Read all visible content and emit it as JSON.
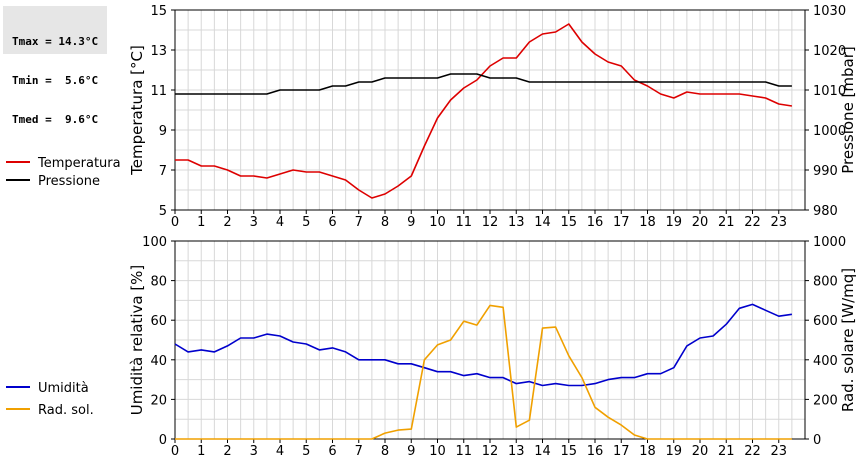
{
  "stats": {
    "tmax": "Tmax = 14.3°C",
    "tmin": "Tmin =  5.6°C",
    "tmed": "Tmed =  9.6°C"
  },
  "chart_data": [
    {
      "type": "line",
      "title": "",
      "xlabel": "",
      "ylabel": "Temperatura [°C]",
      "ylabel_right": "Pressione [mbar]",
      "xlim": [
        0,
        24
      ],
      "ylim": [
        5,
        15
      ],
      "ylim_right": [
        980,
        1030
      ],
      "xticks": [
        0,
        1,
        2,
        3,
        4,
        5,
        6,
        7,
        8,
        9,
        10,
        11,
        12,
        13,
        14,
        15,
        16,
        17,
        18,
        19,
        20,
        21,
        22,
        23
      ],
      "yticks": [
        5,
        7,
        9,
        11,
        13,
        15
      ],
      "yticks_right": [
        980,
        990,
        1000,
        1010,
        1020,
        1030
      ],
      "grid": true,
      "legend": "left",
      "series": [
        {
          "name": "Temperatura",
          "axis": "left",
          "color": "#dd0000",
          "x": [
            0,
            0.5,
            1,
            1.5,
            2,
            2.5,
            3,
            3.5,
            4,
            4.5,
            5,
            5.5,
            6,
            6.5,
            7,
            7.5,
            8,
            8.5,
            9,
            9.5,
            10,
            10.5,
            11,
            11.5,
            12,
            12.5,
            13,
            13.5,
            14,
            14.5,
            15,
            15.5,
            16,
            16.5,
            17,
            17.5,
            18,
            18.5,
            19,
            19.5,
            20,
            20.5,
            21,
            21.5,
            22,
            22.5,
            23,
            23.5
          ],
          "y": [
            7.5,
            7.5,
            7.2,
            7.2,
            7.0,
            6.7,
            6.7,
            6.6,
            6.8,
            7.0,
            6.9,
            6.9,
            6.7,
            6.5,
            6.0,
            5.6,
            5.8,
            6.2,
            6.7,
            8.2,
            9.6,
            10.5,
            11.1,
            11.5,
            12.2,
            12.6,
            12.6,
            13.4,
            13.8,
            13.9,
            14.3,
            13.4,
            12.8,
            12.4,
            12.2,
            11.5,
            11.2,
            10.8,
            10.6,
            10.9,
            10.8,
            10.8,
            10.8,
            10.8,
            10.7,
            10.6,
            10.3,
            10.2
          ]
        },
        {
          "name": "Pressione",
          "axis": "right",
          "color": "#000000",
          "x": [
            0,
            0.5,
            1,
            1.5,
            2,
            2.5,
            3,
            3.5,
            4,
            4.5,
            5,
            5.5,
            6,
            6.5,
            7,
            7.5,
            8,
            8.5,
            9,
            9.5,
            10,
            10.5,
            11,
            11.5,
            12,
            12.5,
            13,
            13.5,
            14,
            14.5,
            15,
            15.5,
            16,
            16.5,
            17,
            17.5,
            18,
            18.5,
            19,
            19.5,
            20,
            20.5,
            21,
            21.5,
            22,
            22.5,
            23,
            23.5
          ],
          "y": [
            1009,
            1009,
            1009,
            1009,
            1009,
            1009,
            1009,
            1009,
            1010,
            1010,
            1010,
            1010,
            1011,
            1011,
            1012,
            1012,
            1013,
            1013,
            1013,
            1013,
            1013,
            1014,
            1014,
            1014,
            1013,
            1013,
            1013,
            1012,
            1012,
            1012,
            1012,
            1012,
            1012,
            1012,
            1012,
            1012,
            1012,
            1012,
            1012,
            1012,
            1012,
            1012,
            1012,
            1012,
            1012,
            1012,
            1011,
            1011
          ]
        }
      ]
    },
    {
      "type": "line",
      "title": "",
      "xlabel": "",
      "ylabel": "Umidità relativa [%]",
      "ylabel_right": "Rad. solare [W/mq]",
      "xlim": [
        0,
        24
      ],
      "ylim": [
        0,
        100
      ],
      "ylim_right": [
        0,
        1000
      ],
      "xticks": [
        0,
        1,
        2,
        3,
        4,
        5,
        6,
        7,
        8,
        9,
        10,
        11,
        12,
        13,
        14,
        15,
        16,
        17,
        18,
        19,
        20,
        21,
        22,
        23
      ],
      "yticks": [
        0,
        20,
        40,
        60,
        80,
        100
      ],
      "yticks_right": [
        0,
        200,
        400,
        600,
        800,
        1000
      ],
      "grid": true,
      "legend": "left",
      "series": [
        {
          "name": "Umidità",
          "axis": "left",
          "color": "#0000cc",
          "x": [
            0,
            0.5,
            1,
            1.5,
            2,
            2.5,
            3,
            3.5,
            4,
            4.5,
            5,
            5.5,
            6,
            6.5,
            7,
            7.5,
            8,
            8.5,
            9,
            9.5,
            10,
            10.5,
            11,
            11.5,
            12,
            12.5,
            13,
            13.5,
            14,
            14.5,
            15,
            15.5,
            16,
            16.5,
            17,
            17.5,
            18,
            18.5,
            19,
            19.5,
            20,
            20.5,
            21,
            21.5,
            22,
            22.5,
            23,
            23.5
          ],
          "y": [
            48,
            44,
            45,
            44,
            47,
            51,
            51,
            53,
            52,
            49,
            48,
            45,
            46,
            44,
            40,
            40,
            40,
            38,
            38,
            36,
            34,
            34,
            32,
            33,
            31,
            31,
            28,
            29,
            27,
            28,
            27,
            27,
            28,
            30,
            31,
            31,
            33,
            33,
            36,
            47,
            51,
            52,
            58,
            66,
            68,
            65,
            62,
            63
          ]
        },
        {
          "name": "Rad. sol.",
          "axis": "right",
          "color": "#f0a000",
          "x": [
            0,
            0.5,
            1,
            1.5,
            2,
            2.5,
            3,
            3.5,
            4,
            4.5,
            5,
            5.5,
            6,
            6.5,
            7,
            7.5,
            8,
            8.5,
            9,
            9.5,
            10,
            10.5,
            11,
            11.5,
            12,
            12.5,
            13,
            13.5,
            14,
            14.5,
            15,
            15.5,
            16,
            16.5,
            17,
            17.5,
            18,
            18.5,
            19,
            19.5,
            20,
            20.5,
            21,
            21.5,
            22,
            22.5,
            23,
            23.5
          ],
          "y": [
            0,
            0,
            0,
            0,
            0,
            0,
            0,
            0,
            0,
            0,
            0,
            0,
            0,
            0,
            0,
            0,
            30,
            45,
            50,
            400,
            475,
            500,
            595,
            575,
            675,
            665,
            60,
            95,
            560,
            565,
            420,
            310,
            160,
            110,
            70,
            20,
            0,
            0,
            0,
            0,
            0,
            0,
            0,
            0,
            0,
            0,
            0,
            0
          ]
        }
      ]
    }
  ]
}
